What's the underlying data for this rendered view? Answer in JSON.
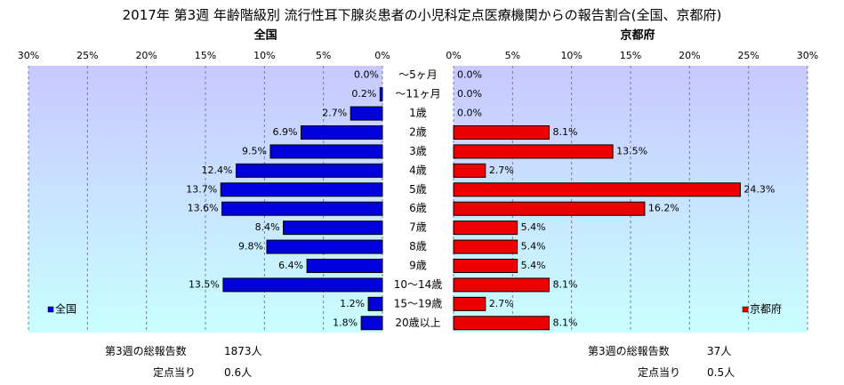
{
  "title": "2017年 第3週 年齢階級別 流行性耳下腺炎患者の小児科定点医療機関からの報告割合(全国、京都府)",
  "colors": {
    "national_bar": "#0000dd",
    "kyoto_bar": "#ee0000",
    "bar_edge": "#000000",
    "bg_top": "#c8c8ff",
    "bg_bottom": "#c8ffff"
  },
  "chart_data": [
    {
      "type": "bar",
      "orientation": "horizontal",
      "direction": "right-to-left",
      "title": "全国",
      "legend": {
        "label": "全国",
        "position": "bottom-left"
      },
      "x_ticks": [
        "30%",
        "25%",
        "20%",
        "15%",
        "10%",
        "5%",
        "0%"
      ],
      "xlim": [
        0,
        30
      ],
      "grid": true,
      "categories": [
        "～5ヶ月",
        "～11ヶ月",
        "1歳",
        "2歳",
        "3歳",
        "4歳",
        "5歳",
        "6歳",
        "7歳",
        "8歳",
        "9歳",
        "10～14歳",
        "15～19歳",
        "20歳以上"
      ],
      "values": [
        0.0,
        0.2,
        2.7,
        6.9,
        9.5,
        12.4,
        13.7,
        13.6,
        8.4,
        9.8,
        6.4,
        13.5,
        1.2,
        1.8
      ],
      "value_labels": [
        "0.0%",
        "0.2%",
        "2.7%",
        "6.9%",
        "9.5%",
        "12.4%",
        "13.7%",
        "13.6%",
        "8.4%",
        "9.8%",
        "6.4%",
        "13.5%",
        "1.2%",
        "1.8%"
      ],
      "summary": {
        "total_label": "第3週の総報告数",
        "total_value": "1873人",
        "per_site_label": "定点当り",
        "per_site_value": "0.6人"
      }
    },
    {
      "type": "bar",
      "orientation": "horizontal",
      "direction": "left-to-right",
      "title": "京都府",
      "legend": {
        "label": "京都府",
        "position": "bottom-right"
      },
      "x_ticks": [
        "0%",
        "5%",
        "10%",
        "15%",
        "20%",
        "25%",
        "30%"
      ],
      "xlim": [
        0,
        30
      ],
      "grid": true,
      "categories": [
        "～5ヶ月",
        "～11ヶ月",
        "1歳",
        "2歳",
        "3歳",
        "4歳",
        "5歳",
        "6歳",
        "7歳",
        "8歳",
        "9歳",
        "10～14歳",
        "15～19歳",
        "20歳以上"
      ],
      "values": [
        0.0,
        0.0,
        0.0,
        8.1,
        13.5,
        2.7,
        24.3,
        16.2,
        5.4,
        5.4,
        5.4,
        8.1,
        2.7,
        8.1
      ],
      "value_labels": [
        "0.0%",
        "0.0%",
        "0.0%",
        "8.1%",
        "13.5%",
        "2.7%",
        "24.3%",
        "16.2%",
        "5.4%",
        "5.4%",
        "5.4%",
        "8.1%",
        "2.7%",
        "8.1%"
      ],
      "summary": {
        "total_label": "第3週の総報告数",
        "total_value": "37人",
        "per_site_label": "定点当り",
        "per_site_value": "0.5人"
      }
    }
  ]
}
